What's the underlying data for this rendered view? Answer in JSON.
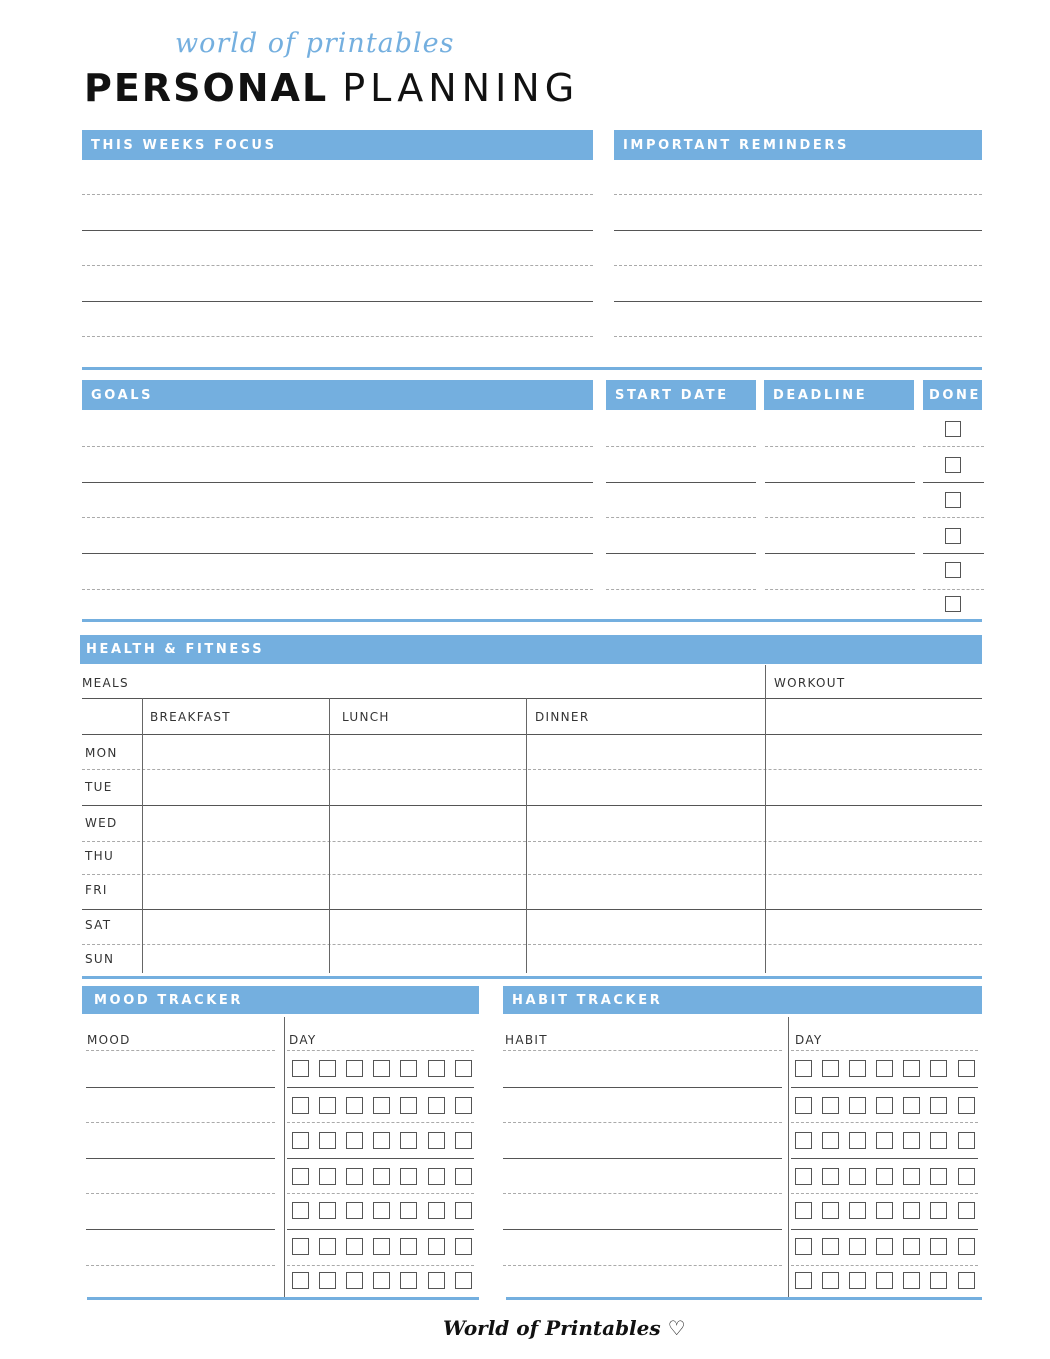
{
  "header": {
    "brand_script": "world of printables",
    "title_bold": "PERSONAL",
    "title_light": "PLANNING"
  },
  "sections": {
    "focus": "THIS WEEKS FOCUS",
    "reminders": "IMPORTANT REMINDERS",
    "goals": "GOALS",
    "start_date": "START DATE",
    "deadline": "DEADLINE",
    "done": "DONE",
    "health": "HEALTH & FITNESS",
    "mood": "MOOD TRACKER",
    "habit": "HABIT TRACKER"
  },
  "health": {
    "meals_label": "MEALS",
    "workout_label": "WORKOUT",
    "columns": [
      "BREAKFAST",
      "LUNCH",
      "DINNER"
    ],
    "days": [
      "MON",
      "TUE",
      "WED",
      "THU",
      "FRI",
      "SAT",
      "SUN"
    ]
  },
  "mood": {
    "col_label": "MOOD",
    "day_label": "DAY"
  },
  "habit": {
    "col_label": "HABIT",
    "day_label": "DAY"
  },
  "footer": {
    "logo": "World of Printables ♡"
  },
  "colors": {
    "accent": "#74afdf"
  }
}
